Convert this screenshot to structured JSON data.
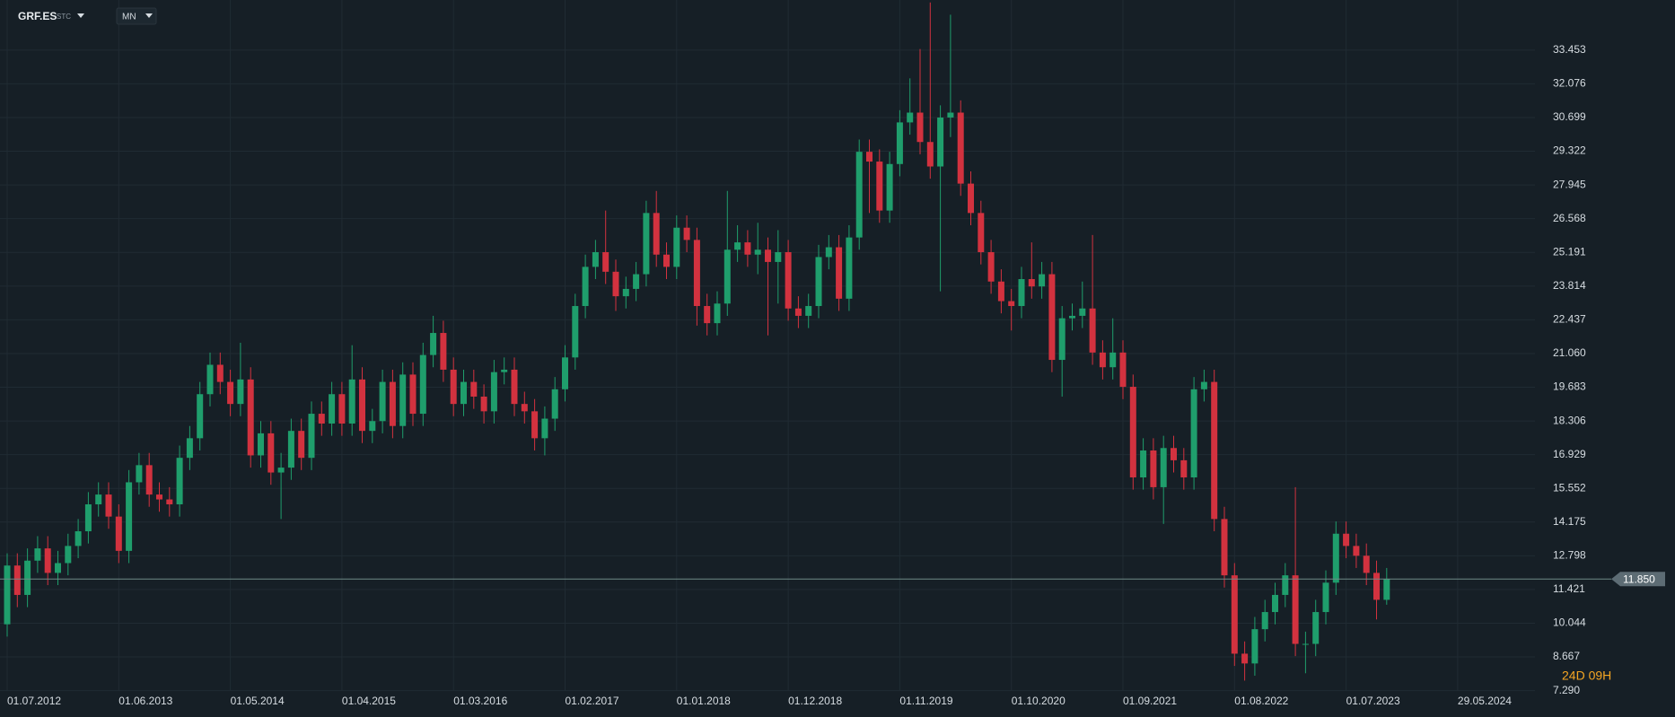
{
  "chart_data": {
    "type": "candlestick",
    "ticker": "GRF.ES",
    "ticker_suffix": "STC",
    "interval": "MN",
    "countdown": "24D 09H",
    "up_color": "#1f9e6c",
    "down_color": "#d2323f",
    "grid": true,
    "ylim": [
      6.25,
      35.5
    ],
    "yticks": [
      {
        "value": 7.29,
        "label": "7.290"
      },
      8.667,
      10.044,
      11.421,
      12.798,
      14.175,
      15.552,
      16.929,
      18.306,
      19.683,
      {
        "value": 21.06,
        "label": "21.060"
      },
      22.437,
      23.814,
      25.191,
      26.568,
      27.945,
      29.322,
      30.699,
      32.076,
      33.453
    ],
    "last_price": {
      "value": 11.85,
      "label": "11.850"
    },
    "future_xtick": "29.05.2024",
    "categories": [
      "01.07.2012",
      null,
      null,
      null,
      null,
      null,
      null,
      null,
      null,
      null,
      null,
      "01.06.2013",
      null,
      null,
      null,
      null,
      null,
      null,
      null,
      null,
      null,
      null,
      "01.05.2014",
      null,
      null,
      null,
      null,
      null,
      null,
      null,
      null,
      null,
      null,
      "01.04.2015",
      null,
      null,
      null,
      null,
      null,
      null,
      null,
      null,
      null,
      null,
      "01.03.2016",
      null,
      null,
      null,
      null,
      null,
      null,
      null,
      null,
      null,
      null,
      "01.02.2017",
      null,
      null,
      null,
      null,
      null,
      null,
      null,
      null,
      null,
      null,
      "01.01.2018",
      null,
      null,
      null,
      null,
      null,
      null,
      null,
      null,
      null,
      null,
      "01.12.2018",
      null,
      null,
      null,
      null,
      null,
      null,
      null,
      null,
      null,
      null,
      "01.11.2019",
      null,
      null,
      null,
      null,
      null,
      null,
      null,
      null,
      null,
      null,
      "01.10.2020",
      null,
      null,
      null,
      null,
      null,
      null,
      null,
      null,
      null,
      null,
      "01.09.2021",
      null,
      null,
      null,
      null,
      null,
      null,
      null,
      null,
      null,
      null,
      "01.08.2022",
      null,
      null,
      null,
      null,
      null,
      null,
      null,
      null,
      null,
      null,
      "01.07.2023",
      null,
      null,
      null,
      null
    ],
    "open": [
      10.0,
      12.4,
      11.2,
      12.6,
      13.1,
      12.1,
      12.5,
      13.2,
      13.8,
      14.9,
      15.3,
      14.4,
      13.0,
      15.8,
      16.5,
      15.3,
      15.1,
      14.9,
      16.8,
      17.6,
      19.4,
      20.6,
      19.9,
      19.0,
      20.0,
      16.9,
      17.8,
      16.2,
      16.4,
      17.9,
      16.8,
      18.6,
      18.2,
      19.4,
      18.2,
      20.0,
      17.9,
      18.3,
      19.9,
      18.1,
      20.2,
      18.6,
      21.0,
      21.9,
      20.4,
      19.0,
      19.9,
      19.3,
      18.7,
      20.3,
      20.4,
      19.0,
      18.7,
      17.6,
      18.4,
      19.6,
      20.9,
      23.0,
      24.6,
      25.2,
      24.4,
      23.4,
      23.7,
      24.3,
      26.8,
      25.1,
      24.6,
      26.2,
      25.7,
      23.0,
      22.3,
      23.1,
      25.3,
      25.6,
      25.1,
      25.3,
      24.8,
      25.2,
      22.9,
      22.6,
      23.0,
      25.0,
      25.4,
      23.3,
      25.8,
      29.3,
      28.9,
      26.9,
      28.8,
      30.5,
      30.9,
      29.7,
      28.7,
      30.7,
      30.9,
      28.0,
      26.8,
      25.2,
      24.0,
      23.2,
      23.0,
      24.1,
      23.8,
      24.3,
      20.8,
      22.5,
      22.6,
      22.9,
      21.1,
      20.5,
      21.1,
      19.7,
      16.0,
      17.1,
      15.6,
      17.2,
      16.7,
      16.0,
      19.6,
      19.9,
      14.3,
      12.0,
      8.8,
      8.4,
      9.8,
      10.5,
      11.2,
      12.0,
      9.2,
      9.2,
      10.5,
      11.7,
      13.7,
      13.2,
      12.8,
      12.1,
      11.0
    ],
    "high": [
      12.9,
      12.9,
      13.1,
      13.6,
      13.6,
      13.0,
      13.7,
      14.3,
      15.4,
      15.8,
      15.8,
      14.9,
      16.3,
      17.0,
      17.0,
      15.8,
      15.6,
      17.3,
      18.1,
      19.9,
      21.1,
      21.1,
      20.4,
      21.5,
      20.5,
      18.3,
      18.3,
      17.0,
      18.4,
      18.4,
      19.1,
      19.1,
      19.9,
      19.9,
      21.4,
      20.5,
      18.8,
      20.4,
      20.4,
      20.7,
      20.7,
      21.5,
      22.6,
      22.4,
      20.9,
      20.4,
      20.4,
      19.8,
      20.8,
      20.9,
      20.9,
      19.5,
      19.2,
      18.9,
      20.1,
      21.4,
      23.5,
      25.1,
      25.7,
      26.9,
      24.9,
      24.2,
      24.8,
      27.3,
      27.7,
      25.6,
      26.7,
      26.7,
      26.2,
      23.5,
      23.6,
      27.7,
      26.3,
      26.1,
      26.4,
      25.8,
      26.1,
      25.7,
      23.4,
      23.5,
      25.5,
      25.9,
      25.9,
      26.3,
      29.8,
      29.8,
      29.4,
      29.3,
      31.0,
      32.3,
      33.5,
      35.4,
      31.2,
      34.9,
      31.4,
      28.5,
      27.3,
      25.7,
      24.5,
      23.7,
      24.6,
      25.6,
      24.8,
      24.8,
      23.0,
      23.1,
      24.0,
      25.9,
      21.6,
      22.5,
      21.6,
      20.2,
      17.6,
      17.6,
      17.7,
      17.7,
      17.2,
      20.1,
      20.4,
      20.4,
      14.8,
      12.5,
      9.3,
      10.3,
      11.0,
      11.7,
      12.5,
      15.6,
      9.7,
      11.0,
      12.2,
      14.2,
      14.2,
      13.7,
      13.3,
      12.6,
      12.3
    ],
    "low": [
      9.5,
      10.7,
      10.7,
      12.1,
      11.6,
      11.6,
      12.0,
      12.7,
      13.3,
      14.4,
      13.9,
      12.5,
      12.5,
      15.3,
      14.8,
      14.6,
      14.4,
      14.4,
      16.3,
      17.1,
      18.9,
      19.4,
      18.5,
      18.5,
      16.4,
      16.4,
      15.7,
      14.3,
      15.9,
      16.3,
      16.3,
      17.7,
      17.7,
      17.7,
      17.7,
      17.4,
      17.4,
      17.8,
      17.6,
      17.6,
      18.1,
      18.1,
      20.5,
      19.9,
      18.5,
      18.5,
      18.8,
      18.2,
      18.2,
      19.8,
      18.5,
      18.2,
      17.1,
      16.9,
      17.9,
      19.1,
      20.4,
      22.5,
      24.1,
      23.9,
      22.8,
      22.9,
      23.2,
      23.8,
      24.6,
      24.1,
      24.1,
      25.2,
      22.2,
      21.8,
      21.8,
      22.6,
      24.8,
      24.6,
      24.3,
      21.8,
      23.1,
      22.4,
      22.1,
      22.1,
      22.5,
      24.5,
      22.8,
      22.8,
      25.3,
      26.8,
      26.4,
      26.4,
      28.3,
      30.0,
      29.2,
      28.2,
      23.6,
      29.9,
      27.5,
      26.3,
      24.7,
      23.5,
      22.7,
      22.0,
      22.5,
      23.3,
      23.3,
      20.3,
      19.3,
      22.0,
      22.1,
      20.6,
      20.0,
      20.0,
      19.2,
      15.5,
      15.5,
      15.1,
      14.1,
      16.2,
      15.5,
      15.5,
      19.1,
      13.8,
      11.5,
      8.3,
      7.7,
      7.9,
      9.3,
      10.0,
      10.7,
      8.7,
      8.0,
      8.7,
      10.0,
      11.2,
      12.7,
      12.3,
      11.6,
      10.2,
      10.8
    ],
    "close": [
      12.4,
      11.2,
      12.6,
      13.1,
      12.1,
      12.5,
      13.2,
      13.8,
      14.9,
      15.3,
      14.4,
      13.0,
      15.8,
      16.5,
      15.3,
      15.1,
      14.9,
      16.8,
      17.6,
      19.4,
      20.6,
      19.9,
      19.0,
      20.0,
      16.9,
      17.8,
      16.2,
      16.4,
      17.9,
      16.8,
      18.6,
      18.2,
      19.4,
      18.2,
      20.0,
      17.9,
      18.3,
      19.9,
      18.1,
      20.2,
      18.6,
      21.0,
      21.9,
      20.4,
      19.0,
      19.9,
      19.3,
      18.7,
      20.3,
      20.4,
      19.0,
      18.7,
      17.6,
      18.4,
      19.6,
      20.9,
      23.0,
      24.6,
      25.2,
      24.4,
      23.4,
      23.7,
      24.3,
      26.8,
      25.1,
      24.6,
      26.2,
      25.7,
      23.0,
      22.3,
      23.1,
      25.3,
      25.6,
      25.1,
      25.3,
      24.8,
      25.2,
      22.9,
      22.6,
      23.0,
      25.0,
      25.4,
      23.3,
      25.8,
      29.3,
      28.9,
      26.9,
      28.8,
      30.5,
      30.9,
      29.7,
      28.7,
      30.7,
      30.9,
      28.0,
      26.8,
      25.2,
      24.0,
      23.2,
      23.0,
      24.1,
      23.8,
      24.3,
      20.8,
      22.5,
      22.6,
      22.9,
      21.1,
      20.5,
      21.1,
      19.7,
      16.0,
      17.1,
      15.6,
      17.2,
      16.7,
      16.0,
      19.6,
      19.9,
      14.3,
      12.0,
      8.8,
      8.4,
      9.8,
      10.5,
      11.2,
      12.0,
      9.2,
      9.2,
      10.5,
      11.7,
      13.7,
      13.2,
      12.8,
      12.1,
      11.0,
      11.85
    ]
  }
}
